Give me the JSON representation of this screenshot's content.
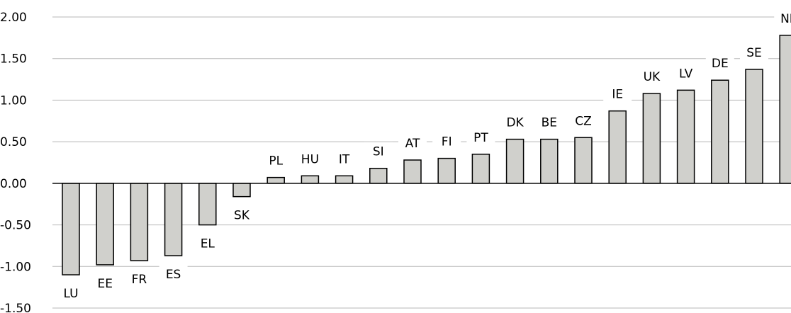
{
  "chart_data": {
    "type": "bar",
    "title": "",
    "xlabel": "",
    "ylabel": "",
    "ylim": [
      -1.5,
      2.0
    ],
    "yticks": [
      "2.00",
      "1.50",
      "1.00",
      "0.50",
      "0.00",
      "-0.50",
      "-1.00",
      "-1.50"
    ],
    "grid": true,
    "categories": [
      "LU",
      "EE",
      "FR",
      "ES",
      "EL",
      "SK",
      "PL",
      "HU",
      "IT",
      "SI",
      "AT",
      "FI",
      "PT",
      "DK",
      "BE",
      "CZ",
      "IE",
      "UK",
      "LV",
      "DE",
      "SE",
      "NL"
    ],
    "values": [
      -1.1,
      -0.98,
      -0.93,
      -0.87,
      -0.5,
      -0.16,
      0.07,
      0.09,
      0.09,
      0.18,
      0.28,
      0.3,
      0.35,
      0.53,
      0.53,
      0.55,
      0.87,
      1.08,
      1.12,
      1.24,
      1.37,
      1.78
    ],
    "colors": {
      "bar_fill": "#d0d0cc",
      "bar_stroke": "#000000",
      "grid": "#b7b7b7"
    }
  }
}
